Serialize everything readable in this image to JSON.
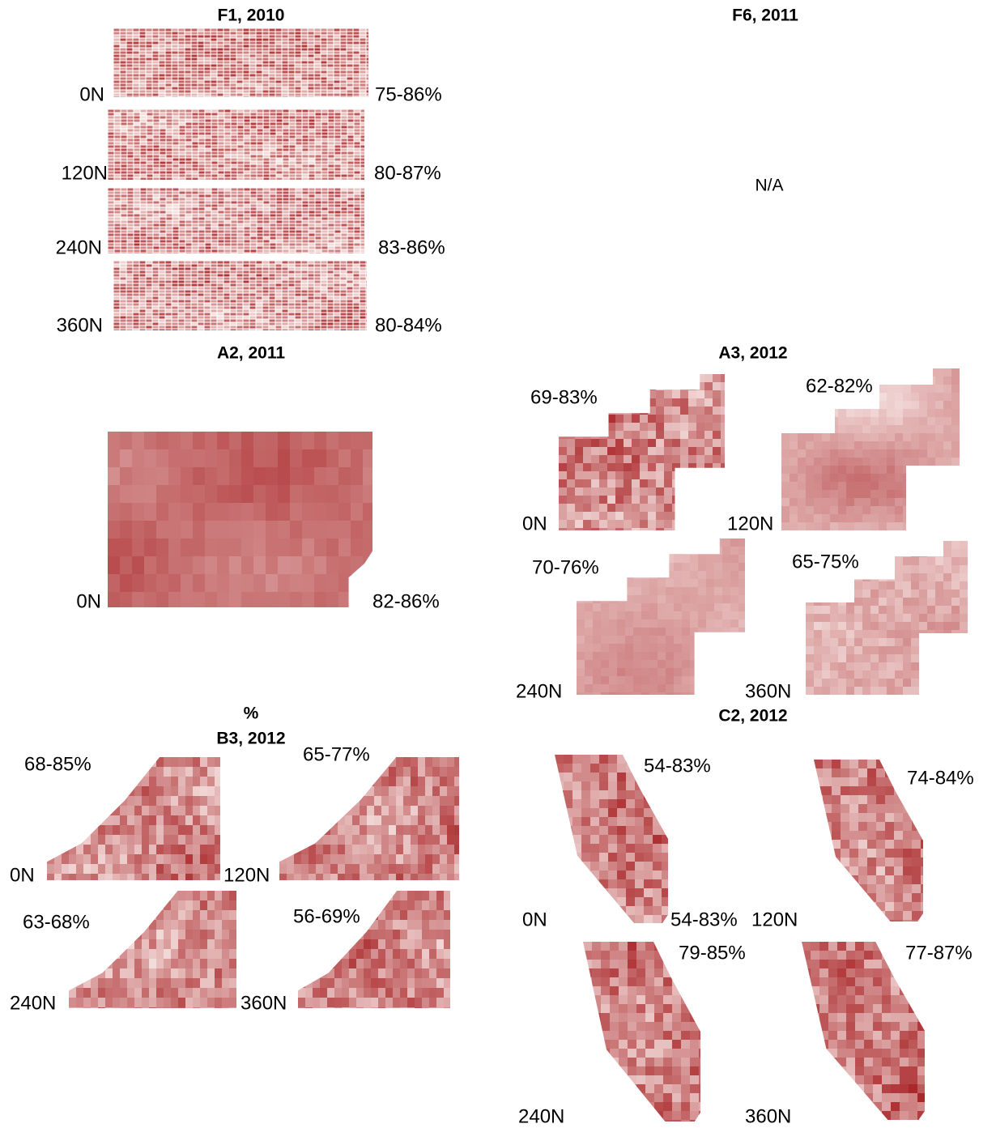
{
  "panels": [
    {
      "title": "F1, 2010",
      "maps": [
        {
          "rate": "0N",
          "range": "75-86%"
        },
        {
          "rate": "120N",
          "range": "80-87%"
        },
        {
          "rate": "240N",
          "range": "83-86%"
        },
        {
          "rate": "360N",
          "range": "80-84%"
        }
      ]
    },
    {
      "title": "F6, 2011",
      "note": "N/A"
    },
    {
      "title": "A2, 2011",
      "maps": [
        {
          "rate": "0N",
          "range": "82-86%"
        }
      ]
    },
    {
      "title": "A3, 2012",
      "maps": [
        {
          "rate": "0N",
          "range": "69-83%"
        },
        {
          "rate": "120N",
          "range": "62-82%"
        },
        {
          "rate": "240N",
          "range": "70-76%"
        },
        {
          "rate": "360N",
          "range": "65-75%"
        }
      ]
    },
    {
      "heading": "%",
      "title": "B3, 2012",
      "maps": [
        {
          "rate": "0N",
          "range": "68-85%"
        },
        {
          "rate": "120N",
          "range": "65-77%"
        },
        {
          "rate": "240N",
          "range": "63-68%"
        },
        {
          "rate": "360N",
          "range": "56-69%"
        }
      ]
    },
    {
      "title": "C2, 2012",
      "maps": [
        {
          "rate": "0N",
          "range": "54-83%",
          "extra": "54-83%"
        },
        {
          "rate": "120N",
          "range": "74-84%"
        },
        {
          "rate": "240N",
          "range": "79-85%"
        },
        {
          "rate": "360N",
          "range": "77-87%"
        }
      ]
    }
  ]
}
